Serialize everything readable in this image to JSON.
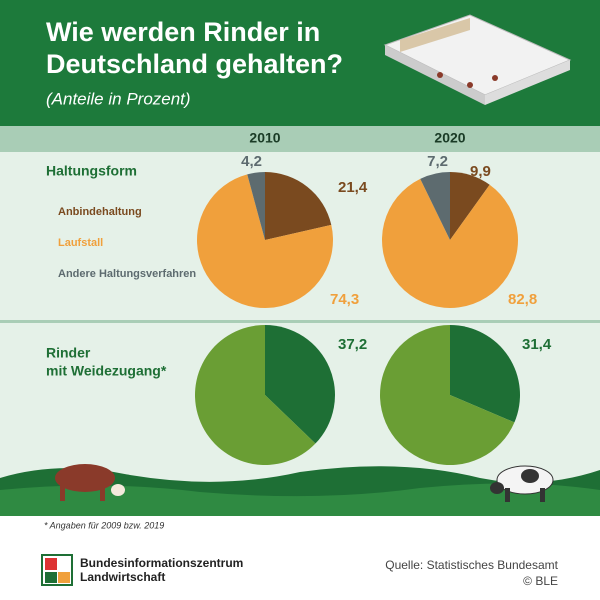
{
  "header": {
    "title": [
      "Wie werden Rinder in",
      "Deutschland gehalten?"
    ],
    "subtitle": "(Anteile in Prozent)"
  },
  "rows": [
    [
      "Haltungsform"
    ],
    [
      "Rinder",
      "mit Weidezugang*"
    ]
  ],
  "chart_data": [
    {
      "type": "pie",
      "title": "2010",
      "categories": [
        "Anbindehaltung",
        "Laufstall",
        "Andere Haltungsverfahren"
      ],
      "values": [
        21.4,
        74.3,
        4.2
      ],
      "value_labels": [
        "21,4",
        "74,3",
        "4,2"
      ],
      "colors": [
        "#7a4a1f",
        "#f0a03c",
        "#5d6b6f"
      ]
    },
    {
      "type": "pie",
      "title": "2020",
      "values": [
        9.9,
        82.8,
        7.2
      ],
      "value_labels": [
        "9,9",
        "82,8",
        "7,2"
      ],
      "colors": [
        "#7a4a1f",
        "#f0a03c",
        "#5d6b6f"
      ]
    },
    {
      "type": "pie",
      "values": [
        37.2,
        62.8
      ],
      "value_labels": [
        "37,2",
        null
      ],
      "colors": [
        "#1e6f35",
        "#6a9e34"
      ]
    },
    {
      "type": "pie",
      "values": [
        31.4,
        68.6
      ],
      "value_labels": [
        "31,4",
        null
      ],
      "colors": [
        "#1e6f35",
        "#6a9e34"
      ]
    }
  ],
  "footer": {
    "note": "* Angaben für 2009 bzw. 2019",
    "logo": [
      "Bundesinformationszentrum",
      "Landwirtschaft"
    ],
    "source": "Quelle: Statistisches Bundesamt",
    "copyright": "© BLE"
  }
}
